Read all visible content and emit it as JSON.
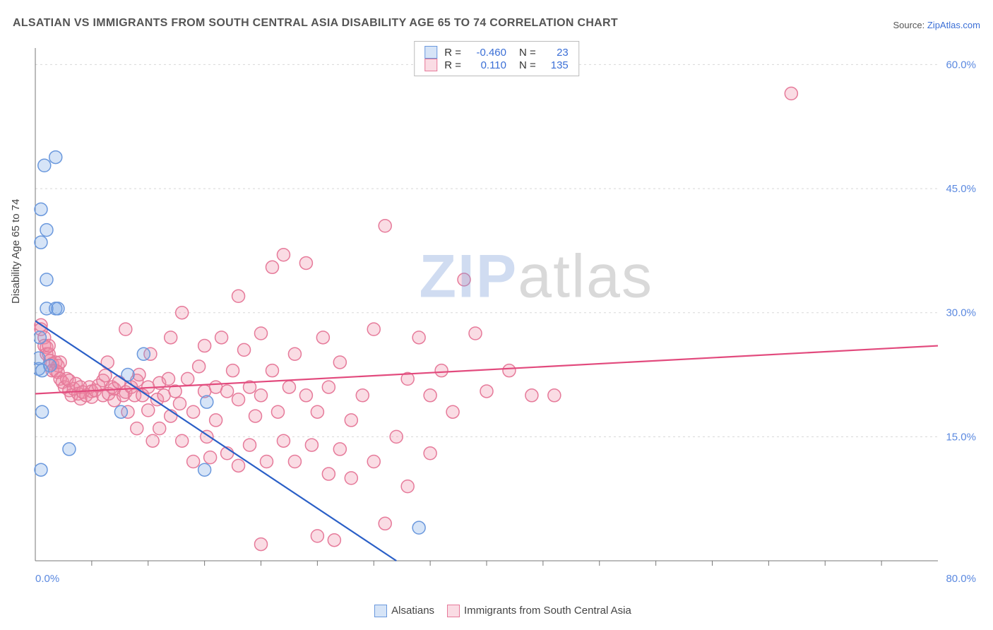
{
  "title": "ALSATIAN VS IMMIGRANTS FROM SOUTH CENTRAL ASIA DISABILITY AGE 65 TO 74 CORRELATION CHART",
  "source_prefix": "Source: ",
  "source_name": "ZipAtlas.com",
  "ylabel": "Disability Age 65 to 74",
  "watermark_z": "ZIP",
  "watermark_rest": "atlas",
  "chart": {
    "type": "scatter",
    "xlim": [
      0,
      80
    ],
    "ylim": [
      0,
      62
    ],
    "x_ticks_minor": [
      5,
      10,
      15,
      20,
      25,
      30,
      35,
      40,
      45,
      50,
      55,
      60,
      65,
      70,
      75
    ],
    "y_gridlines": [
      15,
      30,
      45,
      60
    ],
    "y_tick_labels": [
      "15.0%",
      "30.0%",
      "45.0%",
      "60.0%"
    ],
    "x_tick_min_label": "0.0%",
    "x_tick_max_label": "80.0%",
    "background_color": "#ffffff",
    "grid_color": "#d8d8d8",
    "axis_color": "#777",
    "marker_radius": 9,
    "marker_stroke_width": 1.5,
    "trend_line_width": 2.2,
    "series": [
      {
        "key": "alsatians",
        "label": "Alsatians",
        "fill": "rgba(120,165,230,0.30)",
        "stroke": "#6a98dd",
        "line_color": "#2a5fc7",
        "R": "-0.460",
        "N": "23",
        "trend": {
          "x1": 0,
          "y1": 29,
          "x2": 32,
          "y2": 0
        },
        "points": [
          [
            0.3,
            23.2
          ],
          [
            0.3,
            24.5
          ],
          [
            0.5,
            42.5
          ],
          [
            0.5,
            38.5
          ],
          [
            0.8,
            47.8
          ],
          [
            1.0,
            34.0
          ],
          [
            1.0,
            40.0
          ],
          [
            1.8,
            48.8
          ],
          [
            0.6,
            18.0
          ],
          [
            0.5,
            11.0
          ],
          [
            1.0,
            30.5
          ],
          [
            1.8,
            30.5
          ],
          [
            2.0,
            30.5
          ],
          [
            0.6,
            23.0
          ],
          [
            0.4,
            27.0
          ],
          [
            1.3,
            23.6
          ],
          [
            3.0,
            13.5
          ],
          [
            7.6,
            18.0
          ],
          [
            8.2,
            22.5
          ],
          [
            9.6,
            25.0
          ],
          [
            15.0,
            11.0
          ],
          [
            15.2,
            19.2
          ],
          [
            34.0,
            4.0
          ]
        ]
      },
      {
        "key": "sca",
        "label": "Immigrants from South Central Asia",
        "fill": "rgba(240,140,165,0.30)",
        "stroke": "#e67a9a",
        "line_color": "#e24a7d",
        "R": "0.110",
        "N": "135",
        "trend": {
          "x1": 0,
          "y1": 20.2,
          "x2": 80,
          "y2": 26.0
        },
        "points": [
          [
            0.5,
            28.5
          ],
          [
            0.5,
            28.0
          ],
          [
            0.8,
            27.0
          ],
          [
            0.8,
            26.0
          ],
          [
            1.0,
            25.8
          ],
          [
            1.0,
            25.0
          ],
          [
            1.2,
            25.0
          ],
          [
            1.2,
            26.0
          ],
          [
            1.3,
            24.2
          ],
          [
            1.5,
            23.8
          ],
          [
            1.5,
            23.0
          ],
          [
            1.8,
            24.0
          ],
          [
            1.8,
            23.0
          ],
          [
            2.0,
            23.6
          ],
          [
            2.0,
            22.8
          ],
          [
            2.2,
            22.0
          ],
          [
            2.2,
            24.0
          ],
          [
            2.4,
            21.6
          ],
          [
            2.6,
            21.0
          ],
          [
            2.8,
            22.0
          ],
          [
            3.0,
            20.6
          ],
          [
            3.0,
            21.8
          ],
          [
            3.2,
            20.0
          ],
          [
            3.4,
            20.8
          ],
          [
            3.6,
            21.4
          ],
          [
            3.8,
            20.2
          ],
          [
            4.0,
            19.6
          ],
          [
            4.0,
            21.0
          ],
          [
            4.2,
            20.4
          ],
          [
            4.5,
            20.0
          ],
          [
            4.8,
            21.0
          ],
          [
            5.0,
            20.5
          ],
          [
            5.0,
            19.8
          ],
          [
            5.3,
            20.6
          ],
          [
            5.6,
            21.2
          ],
          [
            6.0,
            20.0
          ],
          [
            6.0,
            21.8
          ],
          [
            6.2,
            22.4
          ],
          [
            6.4,
            24.0
          ],
          [
            6.5,
            20.2
          ],
          [
            6.8,
            21.0
          ],
          [
            7.0,
            19.4
          ],
          [
            7.0,
            20.8
          ],
          [
            7.4,
            21.6
          ],
          [
            7.8,
            20.0
          ],
          [
            8.0,
            20.4
          ],
          [
            8.0,
            28.0
          ],
          [
            8.2,
            18.0
          ],
          [
            8.5,
            21.0
          ],
          [
            8.8,
            20.0
          ],
          [
            9.0,
            21.8
          ],
          [
            9.0,
            16.0
          ],
          [
            9.2,
            22.5
          ],
          [
            9.5,
            20.0
          ],
          [
            10.0,
            21.0
          ],
          [
            10.0,
            18.2
          ],
          [
            10.2,
            25.0
          ],
          [
            10.4,
            14.5
          ],
          [
            10.8,
            19.5
          ],
          [
            11.0,
            21.5
          ],
          [
            11.0,
            16.0
          ],
          [
            11.4,
            20.0
          ],
          [
            11.8,
            22.0
          ],
          [
            12.0,
            17.5
          ],
          [
            12.0,
            27.0
          ],
          [
            12.4,
            20.5
          ],
          [
            12.8,
            19.0
          ],
          [
            13.0,
            30.0
          ],
          [
            13.0,
            14.5
          ],
          [
            13.5,
            22.0
          ],
          [
            14.0,
            18.0
          ],
          [
            14.0,
            12.0
          ],
          [
            14.5,
            23.5
          ],
          [
            15.0,
            26.0
          ],
          [
            15.0,
            20.5
          ],
          [
            15.2,
            15.0
          ],
          [
            15.5,
            12.5
          ],
          [
            16.0,
            21.0
          ],
          [
            16.0,
            17.0
          ],
          [
            16.5,
            27.0
          ],
          [
            17.0,
            20.5
          ],
          [
            17.0,
            13.0
          ],
          [
            17.5,
            23.0
          ],
          [
            18.0,
            19.5
          ],
          [
            18.0,
            11.5
          ],
          [
            18.0,
            32.0
          ],
          [
            18.5,
            25.5
          ],
          [
            19.0,
            21.0
          ],
          [
            19.0,
            14.0
          ],
          [
            19.5,
            17.5
          ],
          [
            20.0,
            27.5
          ],
          [
            20.0,
            20.0
          ],
          [
            20.0,
            2.0
          ],
          [
            20.5,
            12.0
          ],
          [
            21.0,
            23.0
          ],
          [
            21.0,
            35.5
          ],
          [
            21.5,
            18.0
          ],
          [
            22.0,
            14.5
          ],
          [
            22.0,
            37.0
          ],
          [
            22.5,
            21.0
          ],
          [
            23.0,
            25.0
          ],
          [
            23.0,
            12.0
          ],
          [
            24.0,
            20.0
          ],
          [
            24.0,
            36.0
          ],
          [
            24.5,
            14.0
          ],
          [
            25.0,
            3.0
          ],
          [
            25.0,
            18.0
          ],
          [
            25.5,
            27.0
          ],
          [
            26.0,
            10.5
          ],
          [
            26.0,
            21.0
          ],
          [
            26.5,
            2.5
          ],
          [
            27.0,
            13.5
          ],
          [
            27.0,
            24.0
          ],
          [
            28.0,
            17.0
          ],
          [
            28.0,
            10.0
          ],
          [
            29.0,
            20.0
          ],
          [
            30.0,
            12.0
          ],
          [
            30.0,
            28.0
          ],
          [
            31.0,
            40.5
          ],
          [
            31.0,
            4.5
          ],
          [
            32.0,
            15.0
          ],
          [
            33.0,
            22.0
          ],
          [
            33.0,
            9.0
          ],
          [
            34.0,
            27.0
          ],
          [
            35.0,
            20.0
          ],
          [
            35.0,
            13.0
          ],
          [
            36.0,
            23.0
          ],
          [
            37.0,
            18.0
          ],
          [
            38.0,
            34.0
          ],
          [
            39.0,
            27.5
          ],
          [
            40.0,
            20.5
          ],
          [
            42.0,
            23.0
          ],
          [
            44.0,
            20.0
          ],
          [
            46.0,
            20.0
          ],
          [
            67.0,
            56.5
          ]
        ]
      }
    ]
  }
}
